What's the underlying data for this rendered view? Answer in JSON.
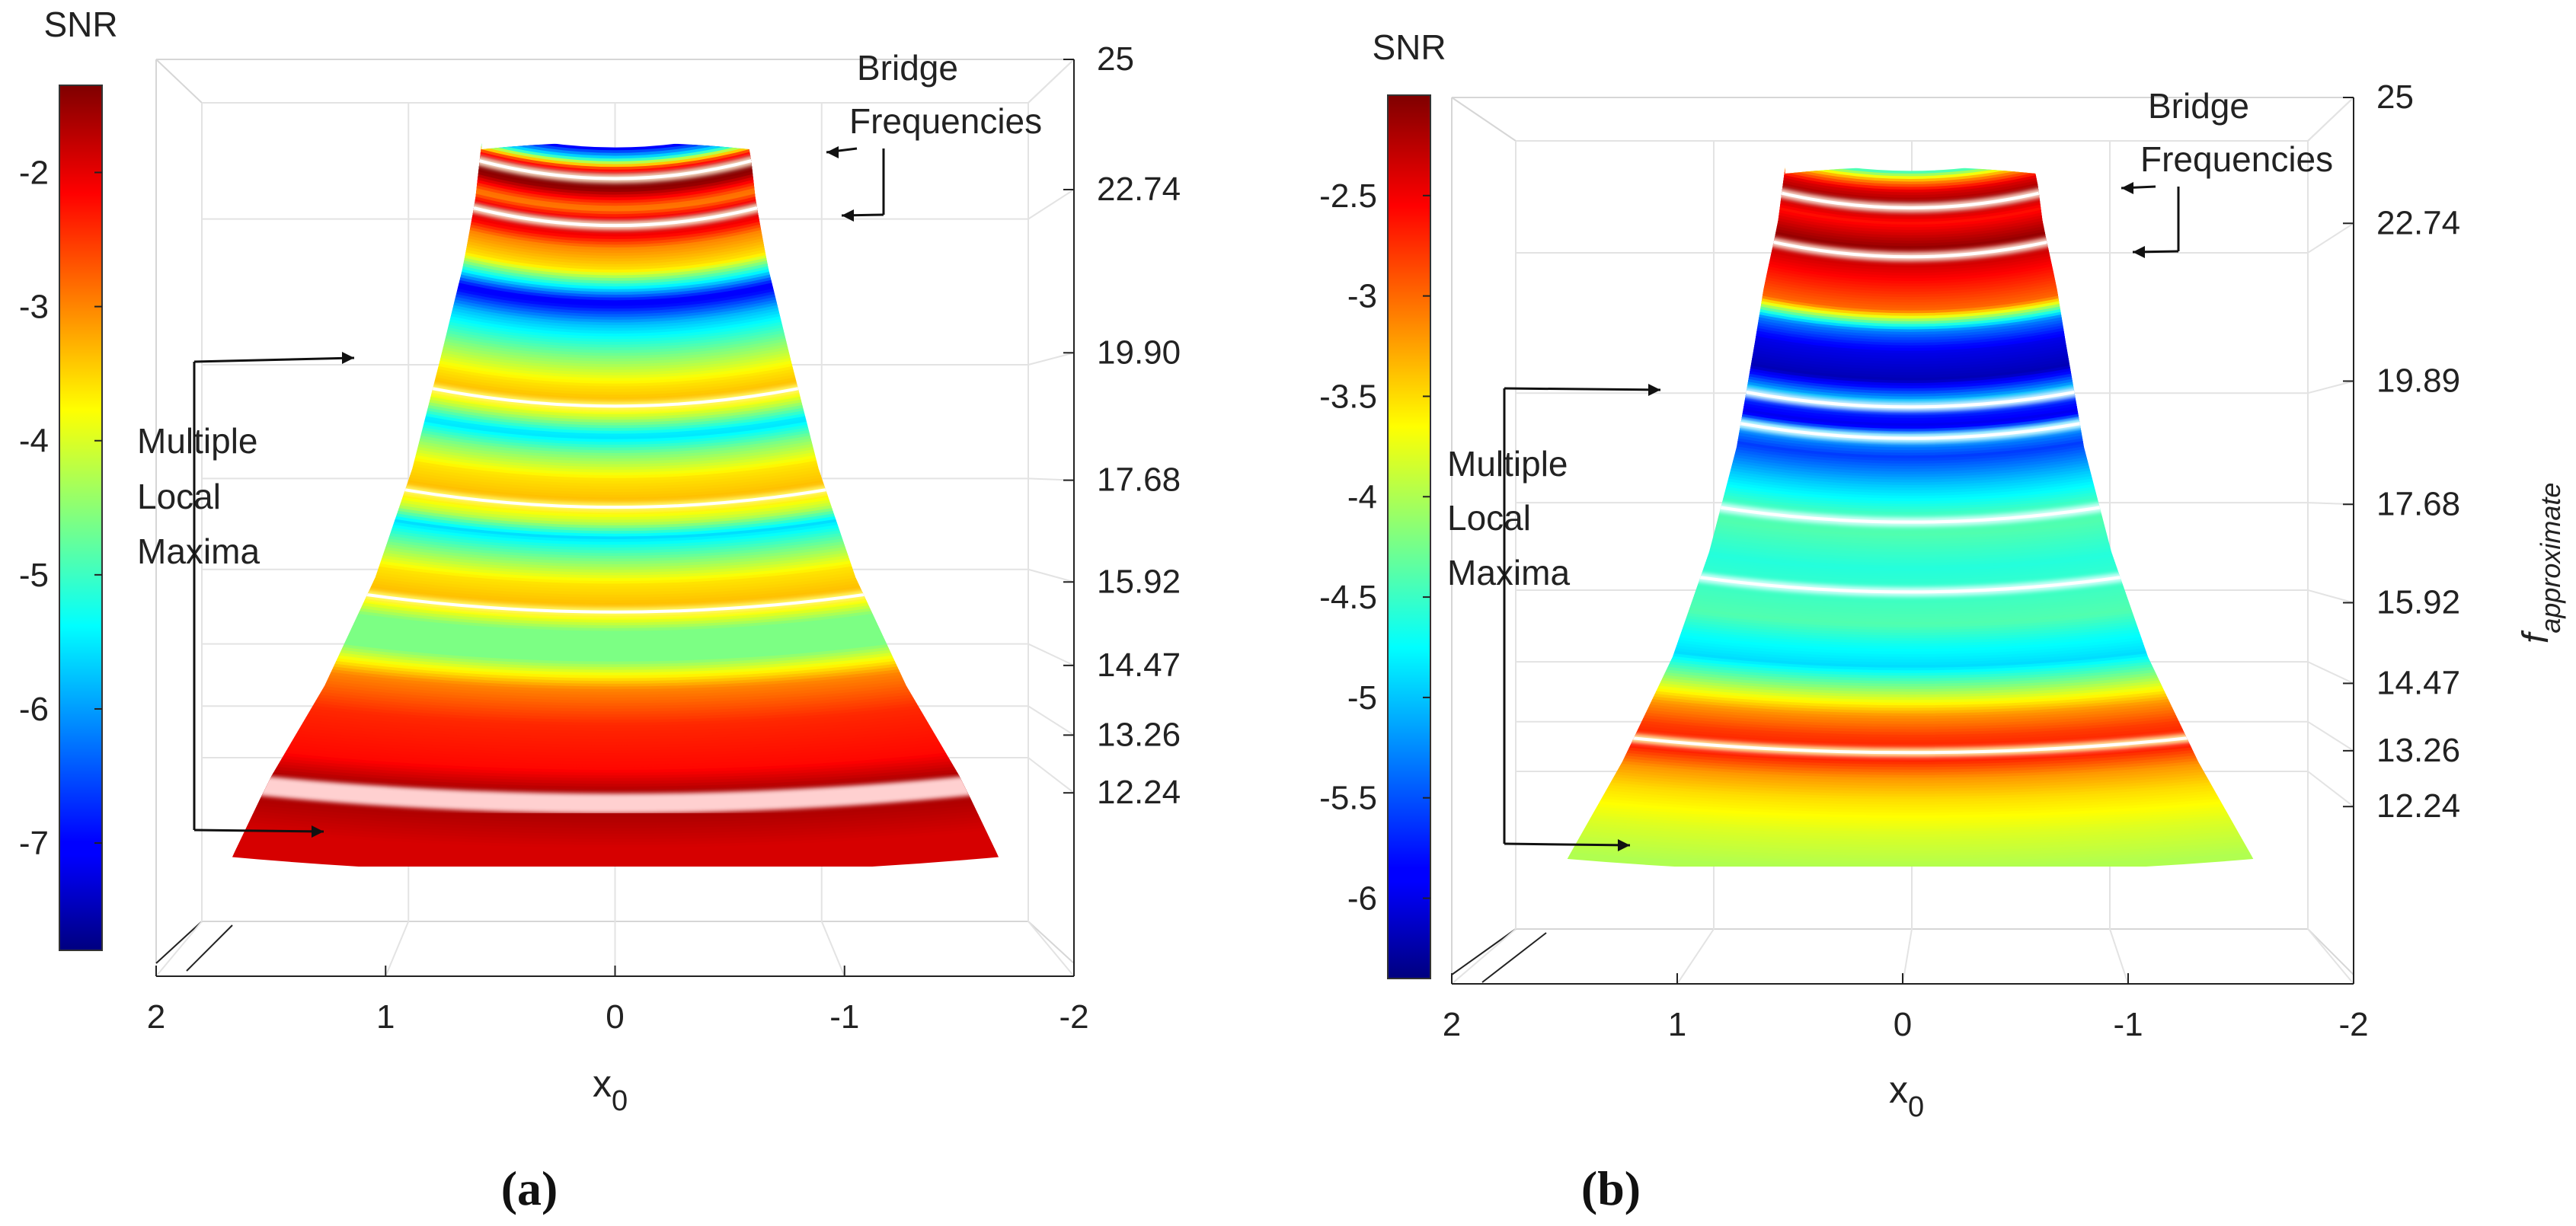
{
  "figure": {
    "label_a": "(a)",
    "label_b": "(b)"
  },
  "chart_data": [
    {
      "panel": "a",
      "type": "heatmap",
      "title": "",
      "colorbar": {
        "title": "SNR",
        "range": [
          -7.8,
          -1.35
        ],
        "ticks": [
          -2,
          -3,
          -4,
          -5,
          -6,
          -7
        ]
      },
      "xlabel": "x",
      "xlabel_sub": "0",
      "x_ticks": [
        "2",
        "1",
        "0",
        "-1",
        "-2"
      ],
      "x_range": [
        2,
        -2
      ],
      "z_ticks": [
        "25",
        "22.74",
        "19.90",
        "17.68",
        "15.92",
        "14.47",
        "13.26",
        "12.24"
      ],
      "surface_rows_top_to_bottom": [
        {
          "t": 0.0,
          "snr": -7.2
        },
        {
          "t": 0.015,
          "snr": -5.5
        },
        {
          "t": 0.03,
          "snr": -2.4
        },
        {
          "t": 0.04,
          "snr": -1.6
        },
        {
          "t": 0.05,
          "snr": -1.35
        },
        {
          "t": 0.06,
          "snr": -1.5
        },
        {
          "t": 0.085,
          "snr": -3.0
        },
        {
          "t": 0.105,
          "snr": -1.6
        },
        {
          "t": 0.125,
          "snr": -2.2
        },
        {
          "t": 0.14,
          "snr": -3.0
        },
        {
          "t": 0.17,
          "snr": -3.6
        },
        {
          "t": 0.195,
          "snr": -5.5
        },
        {
          "t": 0.215,
          "snr": -7.2
        },
        {
          "t": 0.245,
          "snr": -5.8
        },
        {
          "t": 0.29,
          "snr": -4.6
        },
        {
          "t": 0.33,
          "snr": -3.6
        },
        {
          "t": 0.355,
          "snr": -3.3
        },
        {
          "t": 0.375,
          "snr": -4.2
        },
        {
          "t": 0.4,
          "snr": -5.6
        },
        {
          "t": 0.425,
          "snr": -4.6
        },
        {
          "t": 0.46,
          "snr": -3.6
        },
        {
          "t": 0.495,
          "snr": -3.3
        },
        {
          "t": 0.52,
          "snr": -4.2
        },
        {
          "t": 0.54,
          "snr": -5.6
        },
        {
          "t": 0.565,
          "snr": -4.8
        },
        {
          "t": 0.605,
          "snr": -3.6
        },
        {
          "t": 0.64,
          "snr": -3.3
        },
        {
          "t": 0.67,
          "snr": -4.6
        },
        {
          "t": 0.71,
          "snr": -4.6
        },
        {
          "t": 0.75,
          "snr": -3.0
        },
        {
          "t": 0.8,
          "snr": -2.4
        },
        {
          "t": 0.86,
          "snr": -2.2
        },
        {
          "t": 0.9,
          "snr": -1.5
        },
        {
          "t": 0.935,
          "snr": -1.7
        },
        {
          "t": 0.97,
          "snr": -1.9
        },
        {
          "t": 1.0,
          "snr": -1.9
        }
      ],
      "peaks_t": [
        0.04,
        0.105,
        0.355,
        0.495,
        0.64
      ],
      "peak_colors": [
        "#fff4d8",
        "#fff4d8",
        "#ffff70",
        "#ffff70",
        "#ffff70"
      ],
      "white_band_t": 0.905,
      "annotations": [
        {
          "kind": "bridge",
          "lines": [
            "Bridge",
            "Frequencies"
          ]
        },
        {
          "kind": "maxima",
          "lines": [
            "Multiple",
            "Local",
            "Maxima"
          ]
        }
      ]
    },
    {
      "panel": "b",
      "type": "heatmap",
      "title": "",
      "colorbar": {
        "title": "SNR",
        "range": [
          -6.4,
          -2.0
        ],
        "ticks": [
          -2.5,
          -3,
          -3.5,
          -4,
          -4.5,
          -5,
          -5.5,
          -6
        ]
      },
      "xlabel": "x",
      "xlabel_sub": "0",
      "ylabel": "f",
      "ylabel_sub": "approximate",
      "x_ticks": [
        "2",
        "1",
        "0",
        "-1",
        "-2"
      ],
      "x_range": [
        2,
        -2
      ],
      "z_ticks": [
        "25",
        "22.74",
        "19.89",
        "17.68",
        "15.92",
        "14.47",
        "13.26",
        "12.24"
      ],
      "surface_rows_top_to_bottom": [
        {
          "t": 0.0,
          "snr": -4.6
        },
        {
          "t": 0.015,
          "snr": -3.2
        },
        {
          "t": 0.03,
          "snr": -2.4
        },
        {
          "t": 0.045,
          "snr": -2.15
        },
        {
          "t": 0.06,
          "snr": -2.3
        },
        {
          "t": 0.075,
          "snr": -2.6
        },
        {
          "t": 0.095,
          "snr": -2.3
        },
        {
          "t": 0.11,
          "snr": -2.1
        },
        {
          "t": 0.13,
          "snr": -2.3
        },
        {
          "t": 0.16,
          "snr": -2.6
        },
        {
          "t": 0.2,
          "snr": -3.0
        },
        {
          "t": 0.23,
          "snr": -5.3
        },
        {
          "t": 0.26,
          "snr": -6.0
        },
        {
          "t": 0.3,
          "snr": -6.2
        },
        {
          "t": 0.33,
          "snr": -5.0
        },
        {
          "t": 0.345,
          "snr": -5.6
        },
        {
          "t": 0.365,
          "snr": -6.0
        },
        {
          "t": 0.38,
          "snr": -5.0
        },
        {
          "t": 0.41,
          "snr": -5.6
        },
        {
          "t": 0.45,
          "snr": -5.0
        },
        {
          "t": 0.49,
          "snr": -4.5
        },
        {
          "t": 0.52,
          "snr": -4.4
        },
        {
          "t": 0.57,
          "snr": -4.6
        },
        {
          "t": 0.61,
          "snr": -4.5
        },
        {
          "t": 0.65,
          "snr": -4.4
        },
        {
          "t": 0.68,
          "snr": -4.7
        },
        {
          "t": 0.71,
          "snr": -4.9
        },
        {
          "t": 0.74,
          "snr": -4.2
        },
        {
          "t": 0.78,
          "snr": -3.2
        },
        {
          "t": 0.81,
          "snr": -2.8
        },
        {
          "t": 0.84,
          "snr": -2.6
        },
        {
          "t": 0.87,
          "snr": -3.2
        },
        {
          "t": 0.9,
          "snr": -3.5
        },
        {
          "t": 0.95,
          "snr": -3.8
        },
        {
          "t": 1.0,
          "snr": -4.0
        }
      ],
      "peaks_t": [
        0.05,
        0.12,
        0.335,
        0.38,
        0.5,
        0.6,
        0.83
      ],
      "peak_colors": [
        "#fff0e0",
        "#fff0e0",
        "#e6ffff",
        "#e6ffff",
        "#e6ffff",
        "#e6ffff",
        "#ffffb0"
      ],
      "white_band_t": -1,
      "annotations": [
        {
          "kind": "bridge",
          "lines": [
            "Bridge",
            "Frequencies"
          ]
        },
        {
          "kind": "maxima",
          "lines": [
            "Multiple",
            "Local",
            "Maxima"
          ]
        }
      ]
    }
  ]
}
